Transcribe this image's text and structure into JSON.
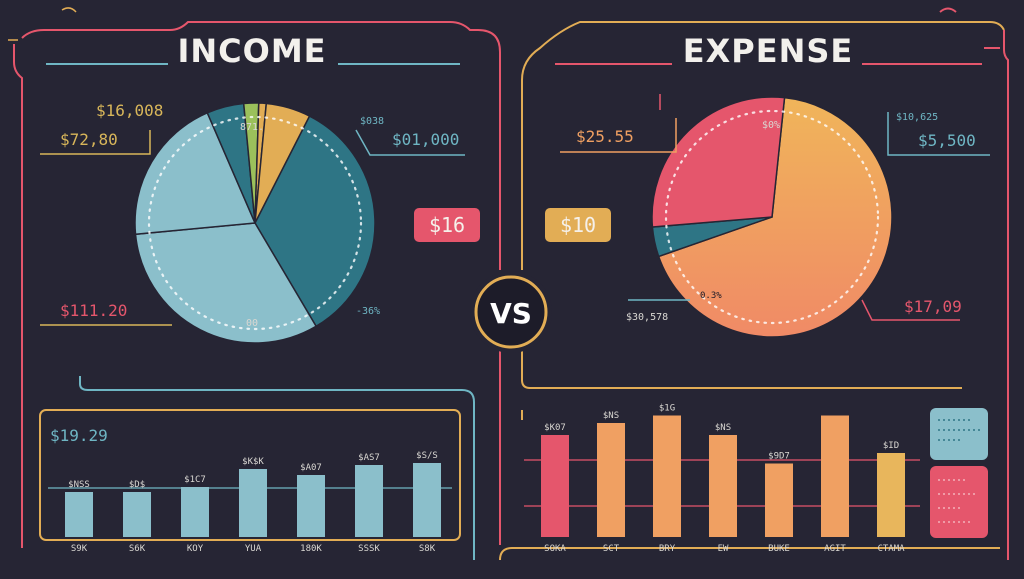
{
  "colors": {
    "background": "#262534",
    "red": "#e5566c",
    "gold": "#e2ad55",
    "orange": "#f0a062",
    "teal": "#2e7585",
    "lightblue": "#8bbfcb",
    "green": "#9bc05b",
    "text": "#f2f0ec"
  },
  "income": {
    "title": "INCOME",
    "labels": {
      "top_small": "$16,008",
      "top_left": "$72,80",
      "slice_label": "871.",
      "right_small": "$038",
      "right_big": "$01,000",
      "bottom_left": "$111.20",
      "center_bottom": "00",
      "bottom_right": "-36%"
    },
    "badge": "$16",
    "bar_panel_label": "$19.29"
  },
  "expense": {
    "title": "EXPENSE",
    "labels": {
      "left_big": "$25.55",
      "slice_label": "$0%",
      "right_small": "$10,625",
      "right_big": "$5,500",
      "small_slice": "0.3%",
      "bottom_left": "$30,578",
      "bottom_right": "$17,09"
    },
    "badge": "$10"
  },
  "vs_label": "VS",
  "chart_data": [
    {
      "type": "pie",
      "title": "INCOME",
      "slices": [
        {
          "label": "871.",
          "value": 34.0,
          "color": "#2e7585"
        },
        {
          "label": "00",
          "value": 32.0,
          "color": "#8bbfcb"
        },
        {
          "label": "",
          "value": 20.0,
          "color": "#8bbfcb"
        },
        {
          "label": "",
          "value": 5.0,
          "color": "#2e7585"
        },
        {
          "label": "",
          "value": 2.0,
          "color": "#9bc05b"
        },
        {
          "label": "",
          "value": 1.0,
          "color": "#e2ad55"
        },
        {
          "label": "",
          "value": 6.0,
          "color": "#e2ad55"
        }
      ]
    },
    {
      "type": "pie",
      "title": "EXPENSE",
      "slices": [
        {
          "label": "$0%",
          "value": 68.0,
          "color": "#f0a062"
        },
        {
          "label": "0.3%",
          "value": 4.0,
          "color": "#2e7585"
        },
        {
          "label": "",
          "value": 28.0,
          "color": "#e5566c"
        }
      ]
    },
    {
      "type": "bar",
      "categories": [
        "S9K",
        "S6K",
        "KOY",
        "YUA",
        "180K",
        "SSSK",
        "S8K"
      ],
      "values": [
        45,
        45,
        50,
        68,
        62,
        72,
        74
      ],
      "value_labels": [
        "$NSS",
        "$D$",
        "$1C7",
        "$K$K",
        "$A07",
        "$AS7",
        "$S/S"
      ],
      "ylim": [
        0,
        100
      ]
    },
    {
      "type": "bar",
      "categories": [
        "SOKA",
        "SCT",
        "BRY",
        "EW",
        "BUKE",
        "AGIT",
        "CTAMA"
      ],
      "values": [
        68,
        76,
        81,
        68,
        49,
        81,
        56
      ],
      "value_labels": [
        "$K07",
        "$NS",
        "$1G",
        "$NS",
        "$9D7",
        "",
        "$ID"
      ],
      "ylim": [
        0,
        100
      ]
    }
  ]
}
